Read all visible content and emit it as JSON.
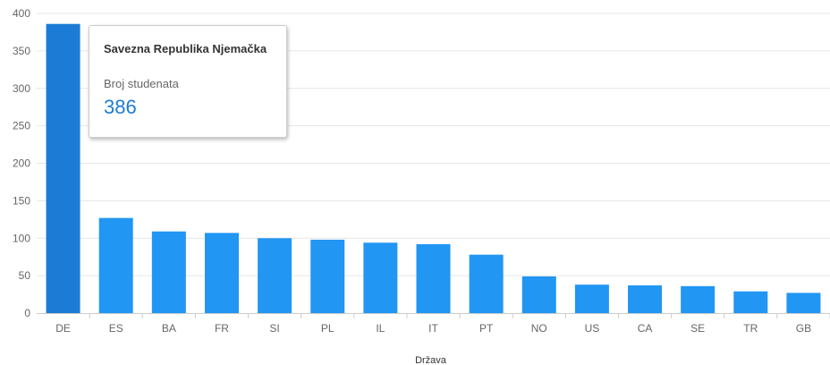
{
  "chart_data": {
    "type": "bar",
    "categories": [
      "DE",
      "ES",
      "BA",
      "FR",
      "SI",
      "PL",
      "IL",
      "IT",
      "PT",
      "NO",
      "US",
      "CA",
      "SE",
      "TR",
      "GB"
    ],
    "values": [
      386,
      127,
      109,
      107,
      100,
      98,
      94,
      92,
      78,
      49,
      38,
      37,
      36,
      29,
      27
    ],
    "xlabel": "Država",
    "ylabel": "",
    "ylim": [
      0,
      400
    ],
    "yticks": [
      0,
      50,
      100,
      150,
      200,
      250,
      300,
      350,
      400
    ],
    "grid": true,
    "colors": {
      "bar": "#2196f3",
      "bar_highlight": "#1c7cd5",
      "grid": "#e6e6e6",
      "axis": "#cccccc"
    },
    "highlighted_index": 0
  },
  "tooltip": {
    "title": "Savezna Republika Njemačka",
    "label": "Broj studenata",
    "value": "386"
  }
}
